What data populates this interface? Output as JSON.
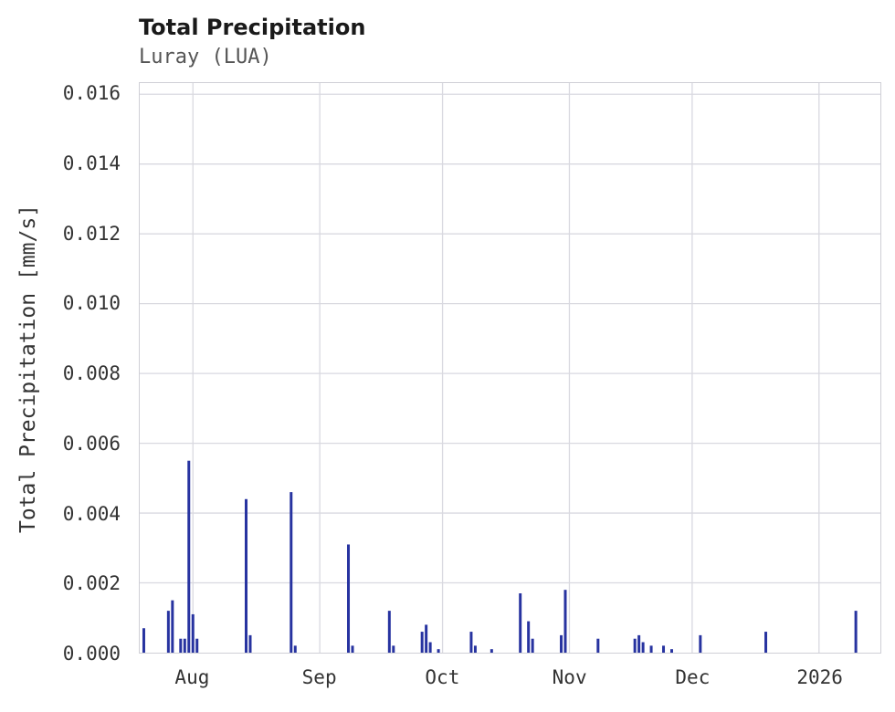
{
  "chart_data": {
    "type": "bar",
    "title": "Total Precipitation",
    "subtitle": "Luray (LUA)",
    "xlabel": "",
    "ylabel": "Total Precipitation [mm/s]",
    "ylim": [
      0,
      0.016
    ],
    "grid": true,
    "legend": "none",
    "x_range": [
      "2025-07-19",
      "2026-01-16"
    ],
    "x_tick_dates": [
      "2025-08-01",
      "2025-09-01",
      "2025-10-01",
      "2025-11-01",
      "2025-12-01",
      "2026-01-01"
    ],
    "x_tick_labels": [
      "Aug",
      "Sep",
      "Oct",
      "Nov",
      "Dec",
      "2026"
    ],
    "y_tick_values": [
      0.0,
      0.002,
      0.004,
      0.006,
      0.008,
      0.01,
      0.012,
      0.014,
      0.016
    ],
    "y_tick_labels": [
      "0.000",
      "0.002",
      "0.004",
      "0.006",
      "0.008",
      "0.010",
      "0.012",
      "0.014",
      "0.016"
    ],
    "colors": {
      "bar": "#2733a0",
      "grid": "#d9d9e0",
      "plot_border": "#cfcfd6",
      "title_text": "#1a1a1a",
      "subtitle_text": "#555555",
      "tick_text": "#333333",
      "background": "#ffffff"
    },
    "series": [
      {
        "name": "Total Precipitation",
        "points": [
          [
            "2025-07-20",
            0.0007
          ],
          [
            "2025-07-26",
            0.0012
          ],
          [
            "2025-07-27",
            0.0015
          ],
          [
            "2025-07-29",
            0.0004
          ],
          [
            "2025-07-30",
            0.0004
          ],
          [
            "2025-07-31",
            0.0055
          ],
          [
            "2025-08-01",
            0.0011
          ],
          [
            "2025-08-02",
            0.0004
          ],
          [
            "2025-08-14",
            0.0044
          ],
          [
            "2025-08-15",
            0.0005
          ],
          [
            "2025-08-25",
            0.0046
          ],
          [
            "2025-08-26",
            0.0002
          ],
          [
            "2025-09-08",
            0.0031
          ],
          [
            "2025-09-09",
            0.0002
          ],
          [
            "2025-09-18",
            0.0012
          ],
          [
            "2025-09-19",
            0.0002
          ],
          [
            "2025-09-26",
            0.0006
          ],
          [
            "2025-09-27",
            0.0008
          ],
          [
            "2025-09-28",
            0.0003
          ],
          [
            "2025-09-30",
            0.0001
          ],
          [
            "2025-10-08",
            0.0006
          ],
          [
            "2025-10-09",
            0.0002
          ],
          [
            "2025-10-13",
            0.0001
          ],
          [
            "2025-10-20",
            0.0017
          ],
          [
            "2025-10-22",
            0.0009
          ],
          [
            "2025-10-23",
            0.0004
          ],
          [
            "2025-10-30",
            0.0005
          ],
          [
            "2025-10-31",
            0.0018
          ],
          [
            "2025-11-08",
            0.0004
          ],
          [
            "2025-11-17",
            0.0004
          ],
          [
            "2025-11-18",
            0.0005
          ],
          [
            "2025-11-19",
            0.0003
          ],
          [
            "2025-11-21",
            0.0002
          ],
          [
            "2025-11-24",
            0.0002
          ],
          [
            "2025-11-26",
            0.0001
          ],
          [
            "2025-12-03",
            0.0005
          ],
          [
            "2025-12-19",
            0.0006
          ],
          [
            "2026-01-10",
            0.0012
          ]
        ]
      }
    ]
  }
}
